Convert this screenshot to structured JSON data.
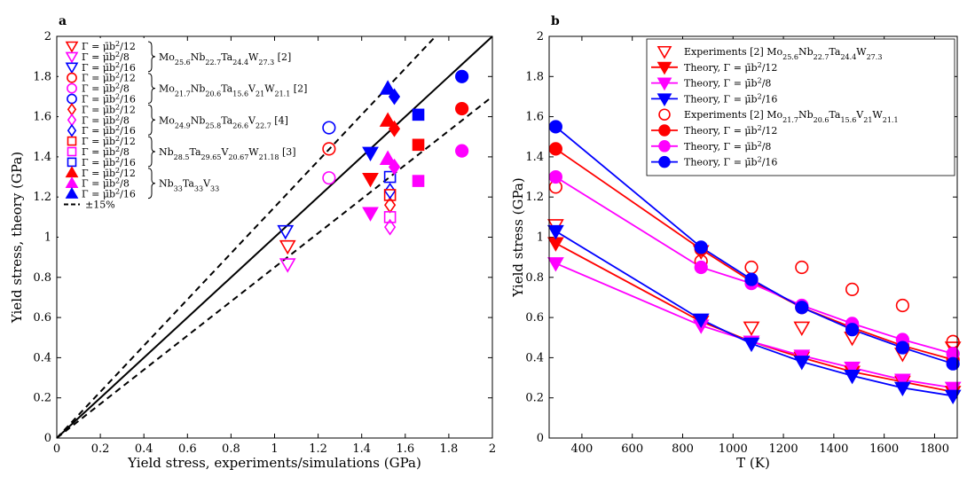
{
  "chart_data": [
    {
      "type": "scatter",
      "panel_label": "a",
      "xlabel": "Yield stress, experiments/simulations (GPa)",
      "ylabel": "Yield stress, theory (GPa)",
      "xlim": [
        0,
        2
      ],
      "ylim": [
        0,
        2
      ],
      "xticks": [
        "0",
        "0.2",
        "0.4",
        "0.6",
        "0.8",
        "1",
        "1.2",
        "1.4",
        "1.6",
        "1.8",
        "2"
      ],
      "yticks": [
        "0",
        "0.2",
        "0.4",
        "0.6",
        "0.8",
        "1",
        "1.2",
        "1.4",
        "1.6",
        "1.8",
        "2"
      ],
      "legend": [
        "Γ = μ̄b²/12",
        "Γ = μ̄b²/8",
        "Γ = μ̄b²/16"
      ],
      "legend_tol": "±15%",
      "groups": [
        {
          "label": "Mo25.6Nb22.7Ta24.4W27.3 [2]",
          "marker": "tri-down",
          "filled": false,
          "points": {
            "r": [
              [
                1.06,
                0.955
              ]
            ],
            "m": [
              [
                1.06,
                0.865
              ]
            ],
            "b": [
              [
                1.05,
                1.03
              ]
            ]
          }
        },
        {
          "label": "Mo21.7Nb20.6Ta15.6V21W21.1 [2]",
          "marker": "circle",
          "filled": false,
          "points": {
            "r": [
              [
                1.25,
                1.44
              ]
            ],
            "m": [
              [
                1.25,
                1.295
              ]
            ],
            "b": [
              [
                1.25,
                1.545
              ]
            ]
          }
        },
        {
          "label": "Mo24.9Nb25.8Ta26.6V22.7 [4]",
          "marker": "diamond",
          "filled": false,
          "points": {
            "r": [
              [
                1.53,
                1.16
              ]
            ],
            "m": [
              [
                1.53,
                1.05
              ]
            ],
            "b": [
              [
                1.53,
                1.23
              ]
            ]
          }
        },
        {
          "label": "Nb28.5Ta29.65V20.67W21.18 [3]",
          "marker": "square",
          "filled": false,
          "points": {
            "r": [
              [
                1.53,
                1.21
              ]
            ],
            "m": [
              [
                1.53,
                1.1
              ]
            ],
            "b": [
              [
                1.53,
                1.3
              ]
            ]
          }
        },
        {
          "label": "Nb33Ta33V33",
          "marker": "tri-up",
          "filled": true,
          "points": {
            "r": [
              [
                1.52,
                1.58
              ]
            ],
            "m": [
              [
                1.52,
                1.39
              ]
            ],
            "b": [
              [
                1.52,
                1.74
              ]
            ]
          }
        },
        {
          "label": "",
          "marker": "tri-down",
          "filled": true,
          "points": {
            "r": [
              [
                1.44,
                1.29
              ]
            ],
            "m": [
              [
                1.44,
                1.12
              ]
            ],
            "b": [
              [
                1.44,
                1.42
              ]
            ]
          }
        },
        {
          "label": "",
          "marker": "diamond",
          "filled": true,
          "points": {
            "r": [
              [
                1.55,
                1.54
              ]
            ],
            "m": [
              [
                1.55,
                1.35
              ]
            ],
            "b": [
              [
                1.55,
                1.7
              ]
            ]
          }
        },
        {
          "label": "",
          "marker": "square",
          "filled": true,
          "points": {
            "r": [
              [
                1.66,
                1.46
              ]
            ],
            "m": [
              [
                1.66,
                1.28
              ]
            ],
            "b": [
              [
                1.66,
                1.61
              ]
            ]
          }
        },
        {
          "label": "",
          "marker": "circle",
          "filled": true,
          "points": {
            "r": [
              [
                1.86,
                1.64
              ]
            ],
            "m": [
              [
                1.86,
                1.43
              ]
            ],
            "b": [
              [
                1.86,
                1.8
              ]
            ]
          }
        }
      ],
      "lines": [
        {
          "name": "identity",
          "slope": 1.0,
          "style": "solid"
        },
        {
          "name": "+15%",
          "slope": 1.15,
          "style": "dashed"
        },
        {
          "name": "-15%",
          "slope": 0.85,
          "style": "dashed"
        }
      ]
    },
    {
      "type": "line",
      "panel_label": "b",
      "xlabel": "T (K)",
      "ylabel": "Yield stress (GPa)",
      "xlim": [
        270,
        1890
      ],
      "ylim": [
        0,
        2
      ],
      "xticks": [
        "400",
        "600",
        "800",
        "1000",
        "1200",
        "1400",
        "1600",
        "1800"
      ],
      "yticks": [
        "0",
        "0.2",
        "0.4",
        "0.6",
        "0.8",
        "1",
        "1.2",
        "1.4",
        "1.6",
        "1.8",
        "2"
      ],
      "x": [
        296,
        873,
        1073,
        1273,
        1473,
        1673,
        1873
      ],
      "series": [
        {
          "name": "Experiments [2] Mo25.6Nb22.7Ta24.4W27.3",
          "color": "r",
          "marker": "tri-down",
          "filled": false,
          "line": false,
          "values": [
            1.06,
            0.93,
            0.55,
            0.55,
            0.5,
            0.42,
            0.45
          ]
        },
        {
          "name": "Theory, Γ = μ̄b²/12",
          "color": "r",
          "marker": "tri-down",
          "filled": true,
          "line": true,
          "values": [
            0.97,
            0.58,
            0.48,
            0.4,
            0.33,
            0.28,
            0.23
          ]
        },
        {
          "name": "Theory, Γ = μ̄b²/8",
          "color": "m",
          "marker": "tri-down",
          "filled": true,
          "line": true,
          "values": [
            0.87,
            0.56,
            0.48,
            0.41,
            0.35,
            0.29,
            0.25
          ]
        },
        {
          "name": "Theory, Γ = μ̄b²/16",
          "color": "b",
          "marker": "tri-down",
          "filled": true,
          "line": true,
          "values": [
            1.03,
            0.59,
            0.47,
            0.38,
            0.31,
            0.25,
            0.21
          ]
        },
        {
          "name": "Experiments [2] Mo21.7Nb20.6Ta15.6V21W21.1",
          "color": "r",
          "marker": "circle",
          "filled": false,
          "line": false,
          "values": [
            1.25,
            0.88,
            0.85,
            0.85,
            0.74,
            0.66,
            0.48
          ]
        },
        {
          "name": "Theory, Γ = μ̄b²/12",
          "color": "r",
          "marker": "circle",
          "filled": true,
          "line": true,
          "values": [
            1.44,
            0.94,
            0.78,
            0.65,
            0.55,
            0.46,
            0.39
          ]
        },
        {
          "name": "Theory, Γ = μ̄b²/8",
          "color": "m",
          "marker": "circle",
          "filled": true,
          "line": true,
          "values": [
            1.3,
            0.85,
            0.77,
            0.66,
            0.57,
            0.49,
            0.42
          ]
        },
        {
          "name": "Theory, Γ = μ̄b²/16",
          "color": "b",
          "marker": "circle",
          "filled": true,
          "line": true,
          "values": [
            1.55,
            0.95,
            0.79,
            0.65,
            0.54,
            0.45,
            0.37
          ]
        }
      ]
    }
  ],
  "colors": {
    "r": "#ff0000",
    "m": "#ff00ff",
    "b": "#0000ff"
  }
}
